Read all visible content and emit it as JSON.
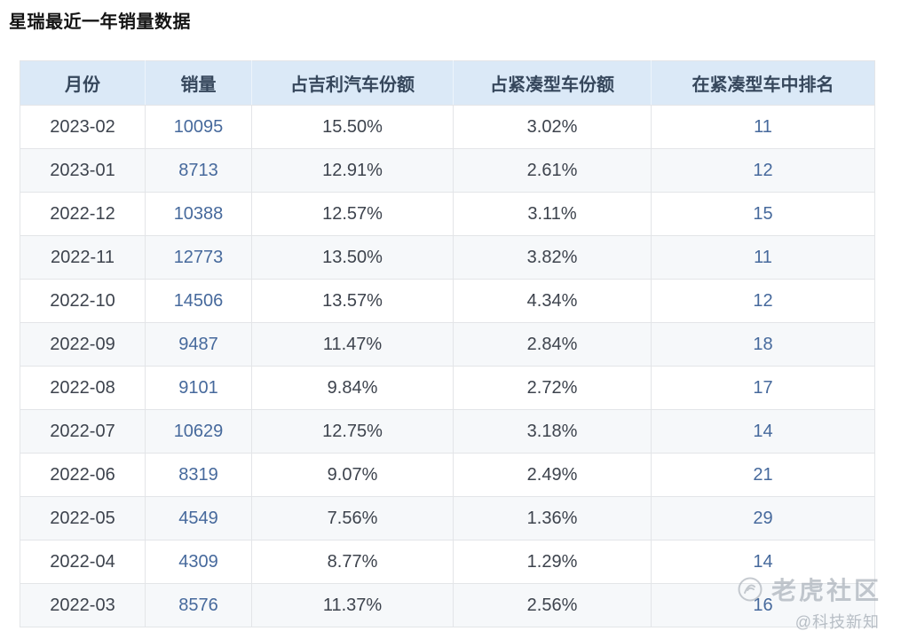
{
  "page": {
    "title": "星瑞最近一年销量数据"
  },
  "chart_data": {
    "type": "table",
    "title": "星瑞最近一年销量数据",
    "columns": [
      "月份",
      "销量",
      "占吉利汽车份额",
      "占紧凑型车份额",
      "在紧凑型车中排名"
    ],
    "rows": [
      [
        "2023-02",
        "10095",
        "15.50%",
        "3.02%",
        "11"
      ],
      [
        "2023-01",
        "8713",
        "12.91%",
        "2.61%",
        "12"
      ],
      [
        "2022-12",
        "10388",
        "12.57%",
        "3.11%",
        "15"
      ],
      [
        "2022-11",
        "12773",
        "13.50%",
        "3.82%",
        "11"
      ],
      [
        "2022-10",
        "14506",
        "13.57%",
        "4.34%",
        "12"
      ],
      [
        "2022-09",
        "9487",
        "11.47%",
        "2.84%",
        "18"
      ],
      [
        "2022-08",
        "9101",
        "9.84%",
        "2.72%",
        "17"
      ],
      [
        "2022-07",
        "10629",
        "12.75%",
        "3.18%",
        "14"
      ],
      [
        "2022-06",
        "8319",
        "9.07%",
        "2.49%",
        "21"
      ],
      [
        "2022-05",
        "4549",
        "7.56%",
        "1.36%",
        "29"
      ],
      [
        "2022-04",
        "4309",
        "8.77%",
        "1.29%",
        "14"
      ],
      [
        "2022-03",
        "8576",
        "11.37%",
        "2.56%",
        "16"
      ]
    ]
  },
  "watermark": {
    "brand": "老虎社区",
    "handle": "@科技新知",
    "logo_icon": "tiger-circle-icon"
  },
  "colors": {
    "header_bg": "#dbe9f7",
    "header_text": "#36475c",
    "cell_text": "#3d434d",
    "link_number": "#46699c",
    "alt_row_bg": "#f6f8fa",
    "border": "#e3e5e8",
    "watermark": "#a8afb8"
  }
}
